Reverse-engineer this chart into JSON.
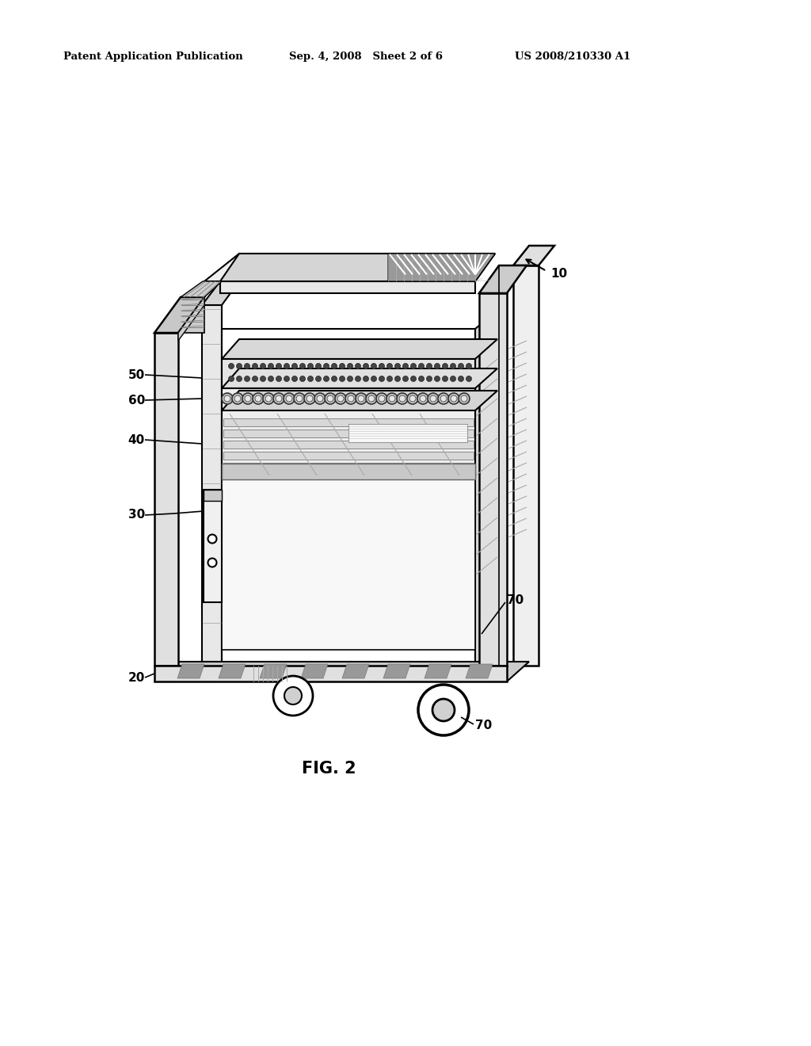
{
  "bg_color": "#ffffff",
  "header_left": "Patent Application Publication",
  "header_mid": "Sep. 4, 2008   Sheet 2 of 6",
  "header_right": "US 2008/210330 A1",
  "fig_label": "FIG. 2"
}
